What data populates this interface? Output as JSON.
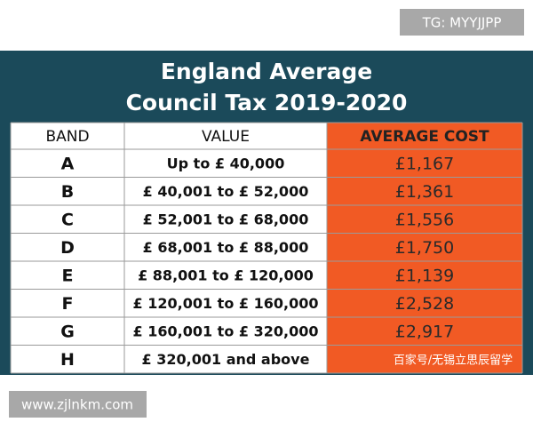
{
  "header": {
    "title": [
      "England Average",
      "Council Tax 2019-2020"
    ]
  },
  "table": {
    "columns": [
      "BAND",
      "VALUE",
      "AVERAGE COST"
    ],
    "rows": [
      [
        "A",
        "Up to  £ 40,000",
        "£1,167"
      ],
      [
        "B",
        "£ 40,001 to £ 52,000",
        "£1,361"
      ],
      [
        "C",
        "£ 52,001 to £ 68,000",
        "£1,556"
      ],
      [
        "D",
        "£ 68,001 to £ 88,000",
        "£1,750"
      ],
      [
        "E",
        "£ 88,001 to £ 120,000",
        "£1,139"
      ],
      [
        "F",
        "£ 120,001 to £ 160,000",
        "£2,528"
      ],
      [
        "G",
        "£ 160,001 to £ 320,000",
        "£2,917"
      ],
      [
        "H",
        "£ 320,001 and above"
      ]
    ]
  },
  "watermarks": {
    "top": "TG: MYYJJPP",
    "bottom": "www.zjlnkm.com",
    "overlay": "百家号/无锡立思辰留学"
  }
}
